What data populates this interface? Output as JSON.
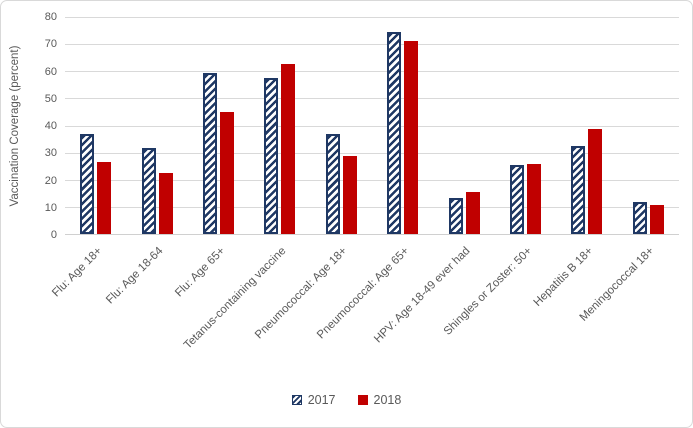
{
  "chart_data": {
    "type": "bar",
    "title": "",
    "xlabel": "",
    "ylabel": "Vaccination Coverage (percent)",
    "ylim": [
      0,
      80
    ],
    "yticks": [
      0,
      10,
      20,
      30,
      40,
      50,
      60,
      70,
      80
    ],
    "grid": "horizontal",
    "legend_position": "bottom-center",
    "categories": [
      "Flu: Age 18+",
      "Flu: Age 18-64",
      "Flu: Age 65+",
      "Tetanus-containing vaccine",
      "Pneumococcal: Age 18+",
      "Pneumococcal: Age 65+",
      "HPV: Age 18-49 ever had",
      "Shingles or Zoster: 50+",
      "Hepatitis B 18+",
      "Meningococcal 18+"
    ],
    "series": [
      {
        "name": "2017",
        "fill_style": "diagonal-hatch",
        "color": "#1f3864",
        "values": [
          36.8,
          31.8,
          59.2,
          57.5,
          36.8,
          74.3,
          13.2,
          25.4,
          32.3,
          11.8
        ]
      },
      {
        "name": "2018",
        "fill_style": "solid",
        "color": "#c00000",
        "values": [
          26.4,
          22.4,
          45.0,
          62.6,
          28.7,
          71.2,
          15.4,
          25.7,
          38.7,
          10.6
        ]
      }
    ]
  },
  "colors": {
    "series_2017": "#1f3864",
    "series_2018": "#c00000",
    "gridline": "#d9d9d9",
    "axis_text": "#595959",
    "frame_border": "#d9d9d9",
    "background": "#ffffff"
  }
}
